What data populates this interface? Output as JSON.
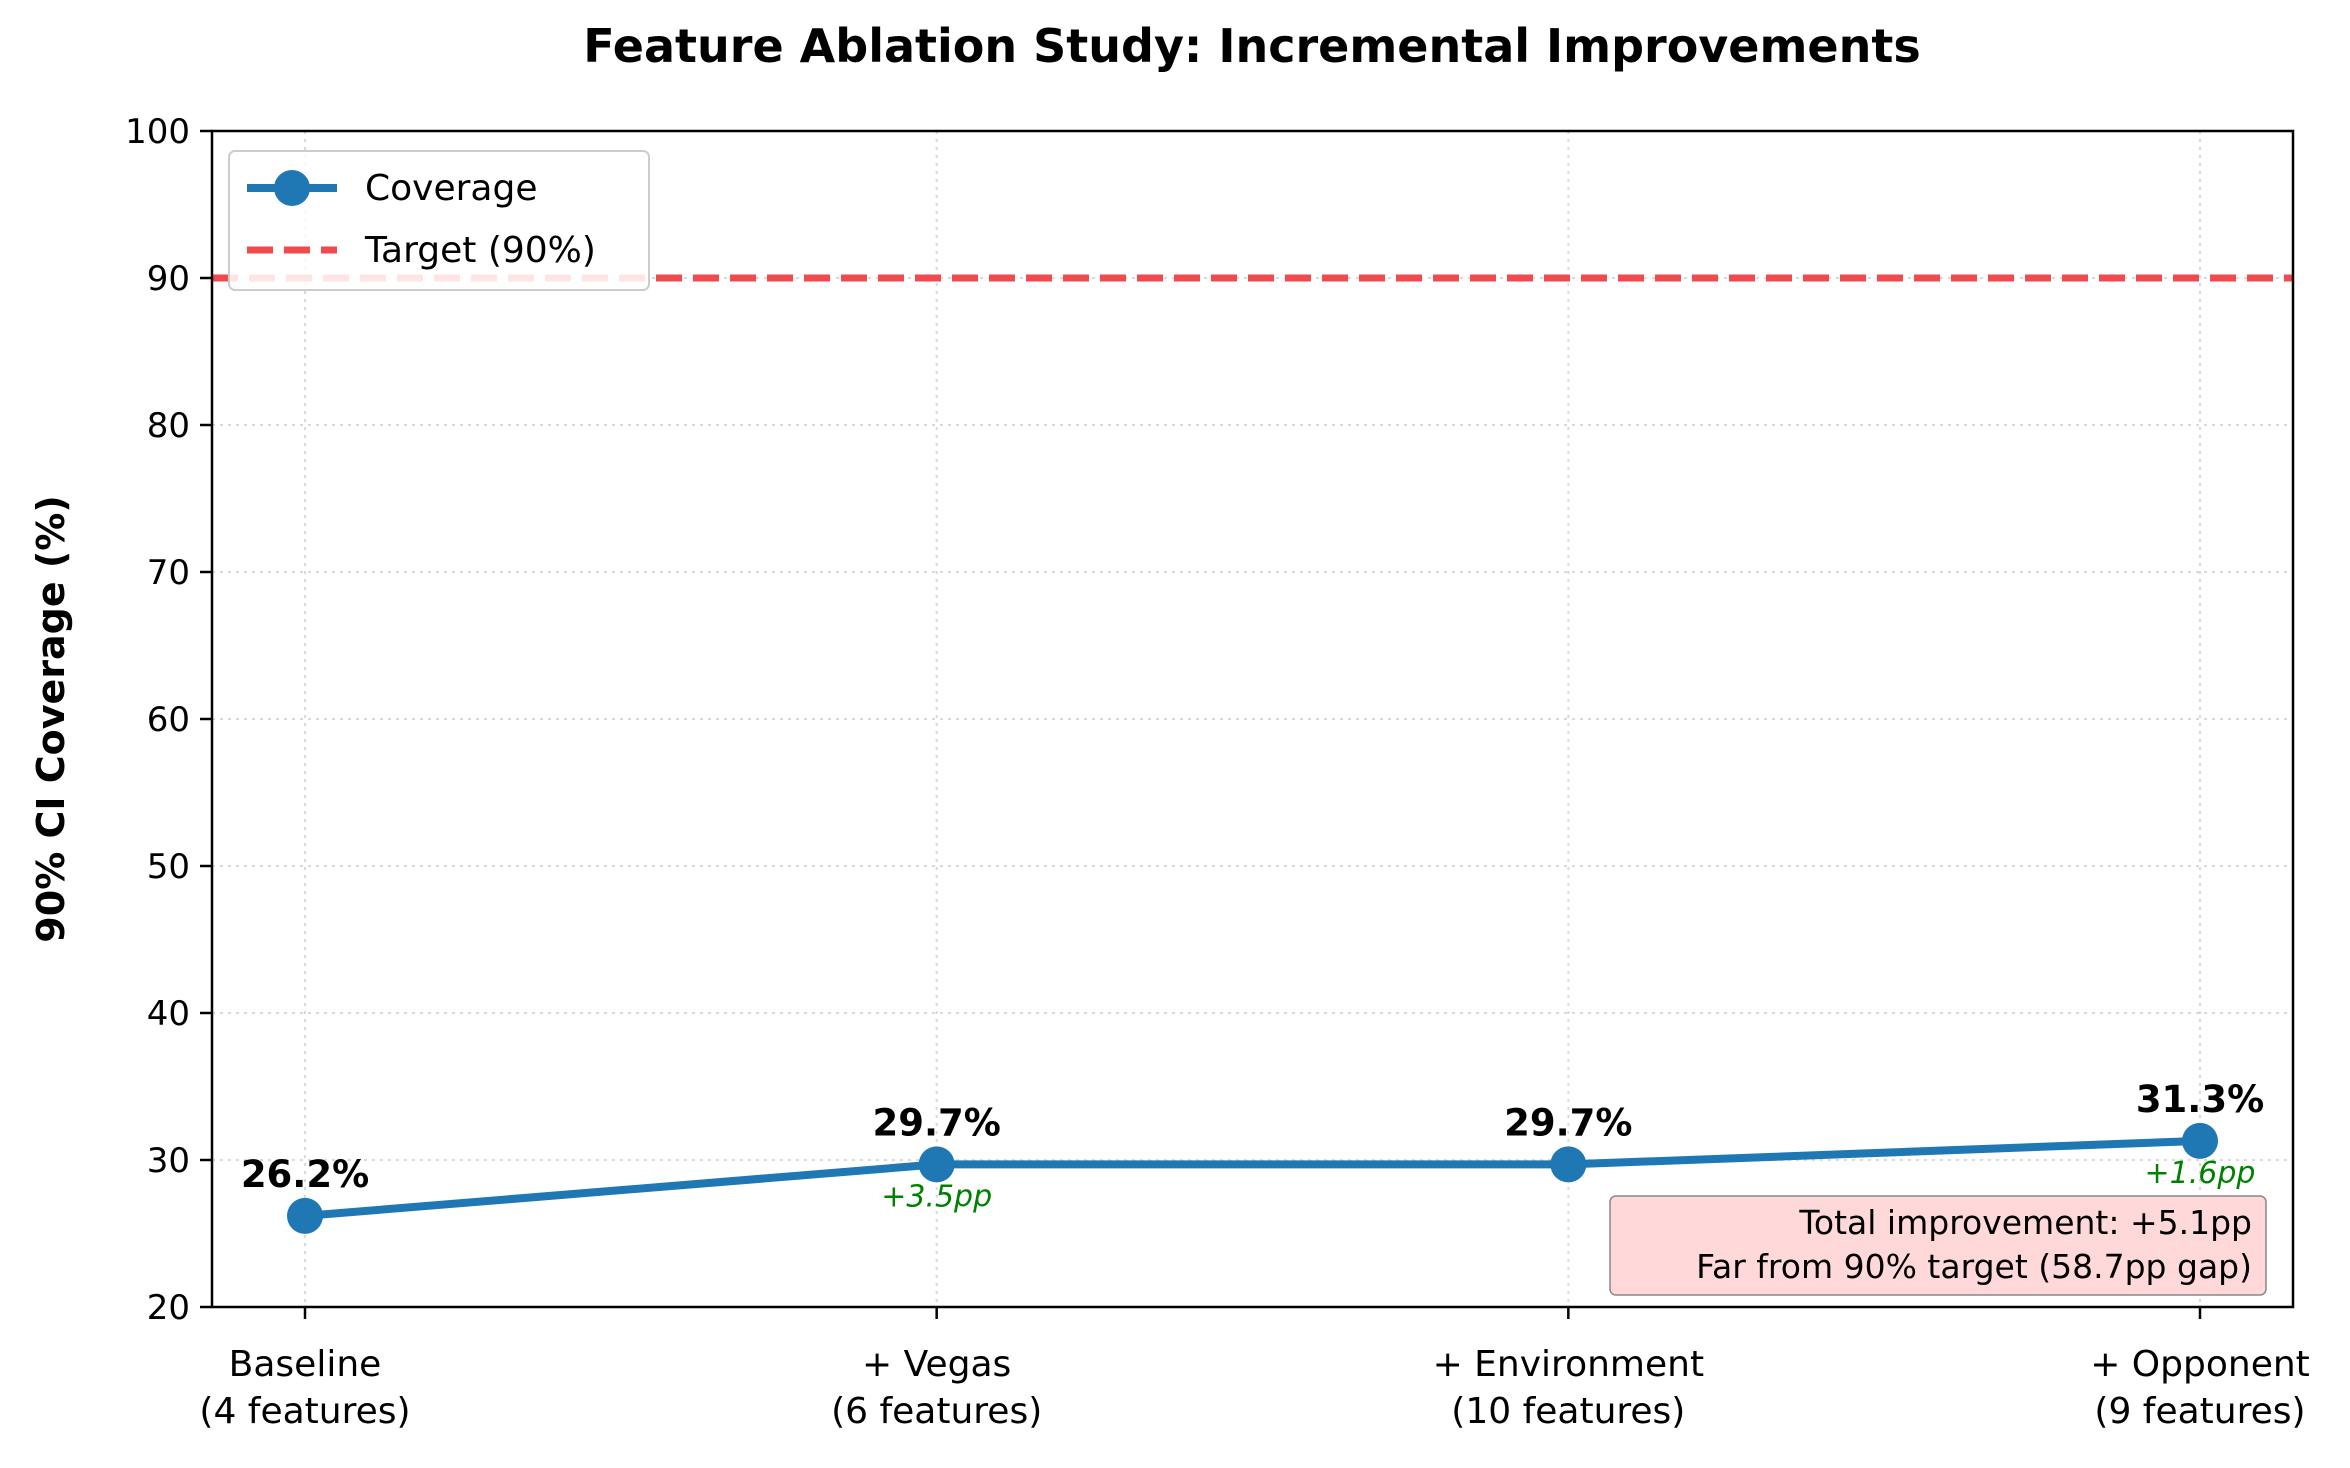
{
  "chart_data": {
    "type": "line",
    "title": "Feature Ablation Study: Incremental Improvements",
    "xlabel": "",
    "ylabel": "90% CI Coverage (%)",
    "ylim": [
      20,
      100
    ],
    "yticks": [
      20,
      30,
      40,
      50,
      60,
      70,
      80,
      90,
      100
    ],
    "grid": true,
    "legend_position": "top-left",
    "categories": [
      [
        "Baseline",
        "(4 features)"
      ],
      [
        "+ Vegas",
        "(6 features)"
      ],
      [
        "+ Environment",
        "(10 features)"
      ],
      [
        "+ Opponent",
        "(9 features)"
      ]
    ],
    "series": [
      {
        "name": "Coverage",
        "values": [
          26.2,
          29.7,
          29.7,
          31.3
        ],
        "color": "#1f77b4",
        "marker": "circle"
      }
    ],
    "reference_line": {
      "name": "Target (90%)",
      "value": 90,
      "color": "#f04a4f",
      "style": "dashed"
    },
    "data_labels": [
      "26.2%",
      "29.7%",
      "29.7%",
      "31.3%"
    ],
    "delta_labels": [
      "",
      "+3.5pp",
      "",
      "+1.6pp"
    ],
    "delta_color": "#008000",
    "annotation_box": {
      "lines": [
        "Total improvement: +5.1pp",
        "Far from 90% target (58.7pp gap)"
      ],
      "background": "#ffd9d9",
      "position": "bottom-right"
    }
  }
}
